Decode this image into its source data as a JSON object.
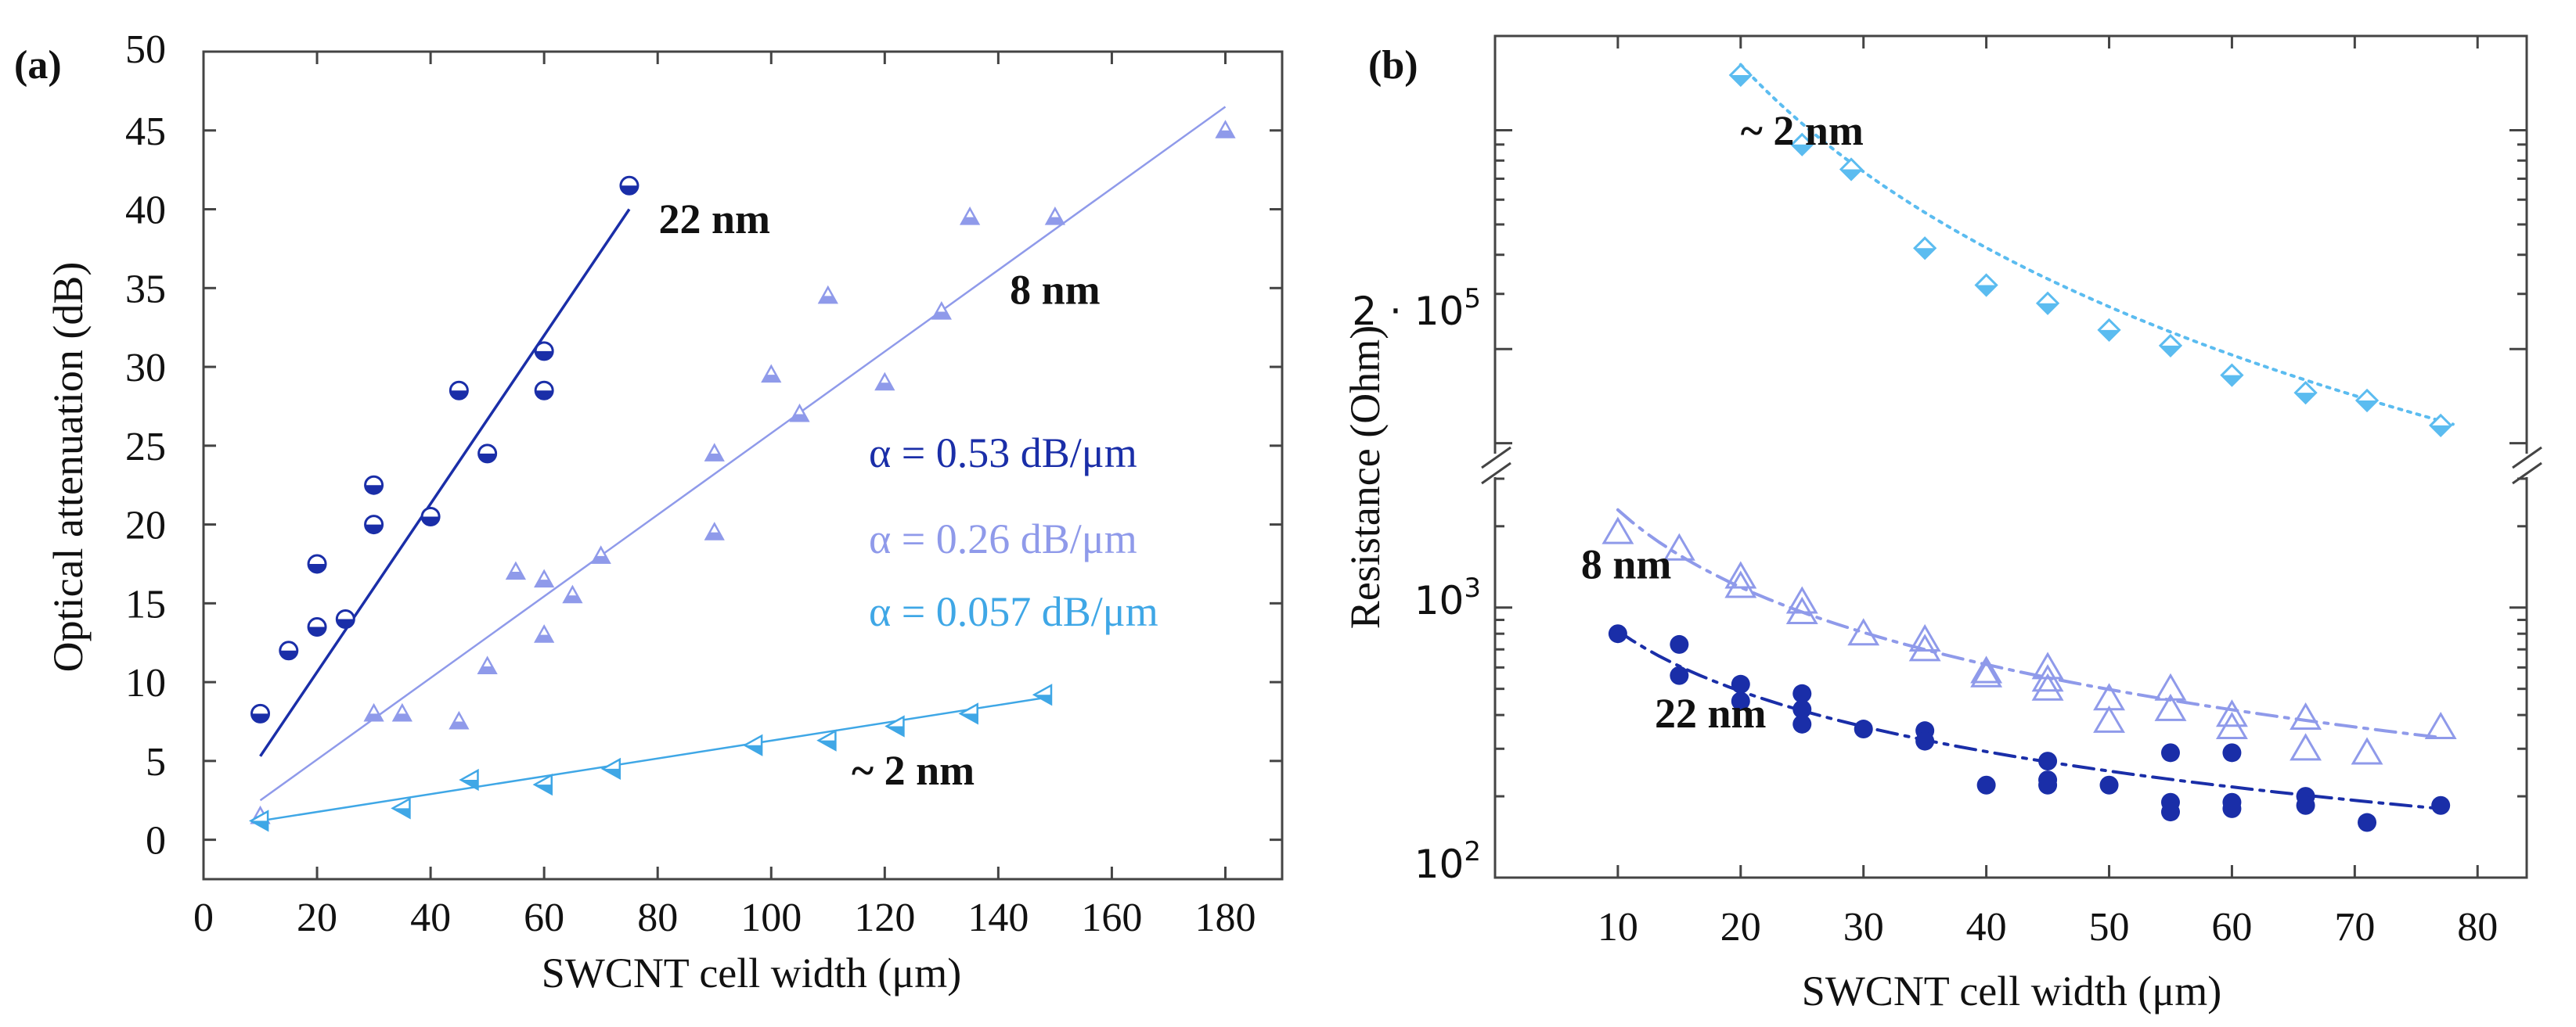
{
  "colors": {
    "dark_blue": "#1a2ea8",
    "light_purple": "#8f9aea",
    "light_blue": "#3fa7e6",
    "sky_blue": "#5bbcf0",
    "axis": "#444444",
    "text": "#111111"
  },
  "chart_data": [
    {
      "panel_label": "(a)",
      "type": "scatter",
      "xlabel": "SWCNT cell width (μm)",
      "ylabel": "Optical attenuation (dB)",
      "xlim": [
        0,
        190
      ],
      "ylim": [
        -2.5,
        50
      ],
      "x_ticks": [
        0,
        20,
        40,
        60,
        80,
        100,
        120,
        140,
        160,
        180
      ],
      "x_tick_labels": [
        "0",
        "20",
        "40",
        "60",
        "80",
        "100",
        "120",
        "140",
        "160",
        "180"
      ],
      "left_ticks": [
        0,
        5,
        10,
        15,
        20,
        25,
        30,
        35,
        40,
        45
      ],
      "left_tick_labels": [
        "0",
        "5",
        "10",
        "15",
        "20",
        "25",
        "30",
        "35",
        "40",
        "45"
      ],
      "top_left_label": "50",
      "grid": false,
      "series": [
        {
          "name": "22 nm",
          "color_key": "dark_blue",
          "marker": "half-filled circle",
          "label_pos": [
            90,
            38.5
          ],
          "fit": {
            "slope_text": "α = 0.53 dB/μm",
            "x": [
              10,
              75
            ],
            "y": [
              5.3,
              40
            ]
          },
          "points": [
            [
              10,
              8
            ],
            [
              15,
              12
            ],
            [
              20,
              17.5
            ],
            [
              20,
              13.5
            ],
            [
              25,
              14
            ],
            [
              30,
              22.5
            ],
            [
              30,
              20
            ],
            [
              40,
              20.5
            ],
            [
              45,
              28.5
            ],
            [
              50,
              24.5
            ],
            [
              60,
              31
            ],
            [
              60,
              28.5
            ],
            [
              75,
              41.5
            ]
          ]
        },
        {
          "name": "8 nm",
          "color_key": "light_purple",
          "marker": "half-filled triangle",
          "label_pos": [
            150,
            34
          ],
          "fit": {
            "slope_text": "α = 0.26 dB/μm",
            "x": [
              10,
              180
            ],
            "y": [
              2.5,
              46.5
            ]
          },
          "points": [
            [
              10,
              1.5
            ],
            [
              30,
              8
            ],
            [
              35,
              8
            ],
            [
              45,
              7.5
            ],
            [
              50,
              11
            ],
            [
              55,
              17
            ],
            [
              60,
              16.5
            ],
            [
              60,
              13
            ],
            [
              65,
              15.5
            ],
            [
              70,
              18
            ],
            [
              90,
              24.5
            ],
            [
              90,
              19.5
            ],
            [
              100,
              29.5
            ],
            [
              105,
              27
            ],
            [
              110,
              34.5
            ],
            [
              120,
              29
            ],
            [
              130,
              33.5
            ],
            [
              135,
              39.5
            ],
            [
              150,
              39.5
            ],
            [
              180,
              45
            ]
          ]
        },
        {
          "name": "~ 2 nm",
          "color_key": "light_blue",
          "marker": "half-filled left triangle",
          "label_pos": [
            125,
            3.5
          ],
          "fit": {
            "slope_text": "α = 0.057 dB/μm",
            "x": [
              10,
              148
            ],
            "y": [
              1.2,
              9
            ]
          },
          "points": [
            [
              10,
              1.2
            ],
            [
              35,
              2
            ],
            [
              47,
              3.8
            ],
            [
              60,
              3.5
            ],
            [
              72,
              4.5
            ],
            [
              97,
              6
            ],
            [
              110,
              6.3
            ],
            [
              122,
              7.2
            ],
            [
              135,
              8
            ],
            [
              148,
              9.2
            ]
          ]
        }
      ],
      "legend_texts": [
        "α = 0.53 dB/μm",
        "α = 0.26 dB/μm",
        "α = 0.057 dB/μm"
      ]
    },
    {
      "panel_label": "(b)",
      "type": "scatter",
      "xlabel": "SWCNT cell width (μm)",
      "ylabel": "Resistance (Ohm)",
      "xlim": [
        0,
        84
      ],
      "y_scale": "log, broken axis",
      "y_lower_range": [
        100,
        3000
      ],
      "y_upper_range": [
        90000,
        2000000
      ],
      "x_ticks": [
        10,
        20,
        30,
        40,
        50,
        60,
        70,
        80
      ],
      "x_tick_labels": [
        "10",
        "20",
        "30",
        "40",
        "50",
        "60",
        "70",
        "80"
      ],
      "y_tick_labels": {
        "low": "10",
        "low_exp": "2",
        "mid": "10",
        "mid_exp": "3",
        "upper_prefix": "2 · 10",
        "upper_exp": "5"
      },
      "grid": false,
      "series": [
        {
          "name": "~ 2 nm",
          "color_key": "sky_blue",
          "marker": "half-filled diamond",
          "fit_style": "dotted",
          "label_pos": [
            20,
            900000
          ],
          "fit": {
            "x": [
              20,
              78
            ],
            "y": [
              1620000,
              115000
            ]
          },
          "points": [
            [
              20,
              1500000
            ],
            [
              25,
              900000
            ],
            [
              29,
              750000
            ],
            [
              35,
              420000
            ],
            [
              40,
              320000
            ],
            [
              45,
              280000
            ],
            [
              50,
              230000
            ],
            [
              55,
              205000
            ],
            [
              60,
              165000
            ],
            [
              66,
              145000
            ],
            [
              71,
              137000
            ],
            [
              77,
              114000
            ]
          ]
        },
        {
          "name": "8 nm",
          "color_key": "light_purple",
          "marker": "open triangle",
          "fit_style": "dash-dot",
          "label_pos": [
            7,
            1280
          ],
          "fit": {
            "x": [
              10,
              77
            ],
            "y": [
              2300,
              330
            ]
          },
          "points": [
            [
              10,
              1900
            ],
            [
              15,
              1650
            ],
            [
              20,
              1300
            ],
            [
              20,
              1200
            ],
            [
              25,
              1050
            ],
            [
              25,
              960
            ],
            [
              30,
              800
            ],
            [
              35,
              760
            ],
            [
              35,
              700
            ],
            [
              40,
              580
            ],
            [
              40,
              560
            ],
            [
              45,
              600
            ],
            [
              45,
              540
            ],
            [
              45,
              500
            ],
            [
              50,
              460
            ],
            [
              50,
              380
            ],
            [
              55,
              500
            ],
            [
              55,
              420
            ],
            [
              60,
              400
            ],
            [
              60,
              360
            ],
            [
              66,
              390
            ],
            [
              66,
              300
            ],
            [
              71,
              290
            ],
            [
              77,
              360
            ]
          ]
        },
        {
          "name": "22 nm",
          "color_key": "dark_blue",
          "marker": "filled circle",
          "fit_style": "dash-dot",
          "label_pos": [
            13,
            360
          ],
          "fit": {
            "x": [
              10,
              77
            ],
            "y": [
              820,
              180
            ]
          },
          "points": [
            [
              10,
              800
            ],
            [
              15,
              730
            ],
            [
              15,
              560
            ],
            [
              20,
              520
            ],
            [
              20,
              450
            ],
            [
              25,
              480
            ],
            [
              25,
              420
            ],
            [
              25,
              370
            ],
            [
              30,
              355
            ],
            [
              35,
              350
            ],
            [
              35,
              320
            ],
            [
              40,
              220
            ],
            [
              45,
              270
            ],
            [
              45,
              230
            ],
            [
              45,
              220
            ],
            [
              50,
              220
            ],
            [
              55,
              290
            ],
            [
              55,
              190
            ],
            [
              55,
              175
            ],
            [
              60,
              290
            ],
            [
              60,
              190
            ],
            [
              60,
              180
            ],
            [
              66,
              200
            ],
            [
              66,
              185
            ],
            [
              71,
              160
            ],
            [
              77,
              185
            ]
          ]
        }
      ]
    }
  ]
}
